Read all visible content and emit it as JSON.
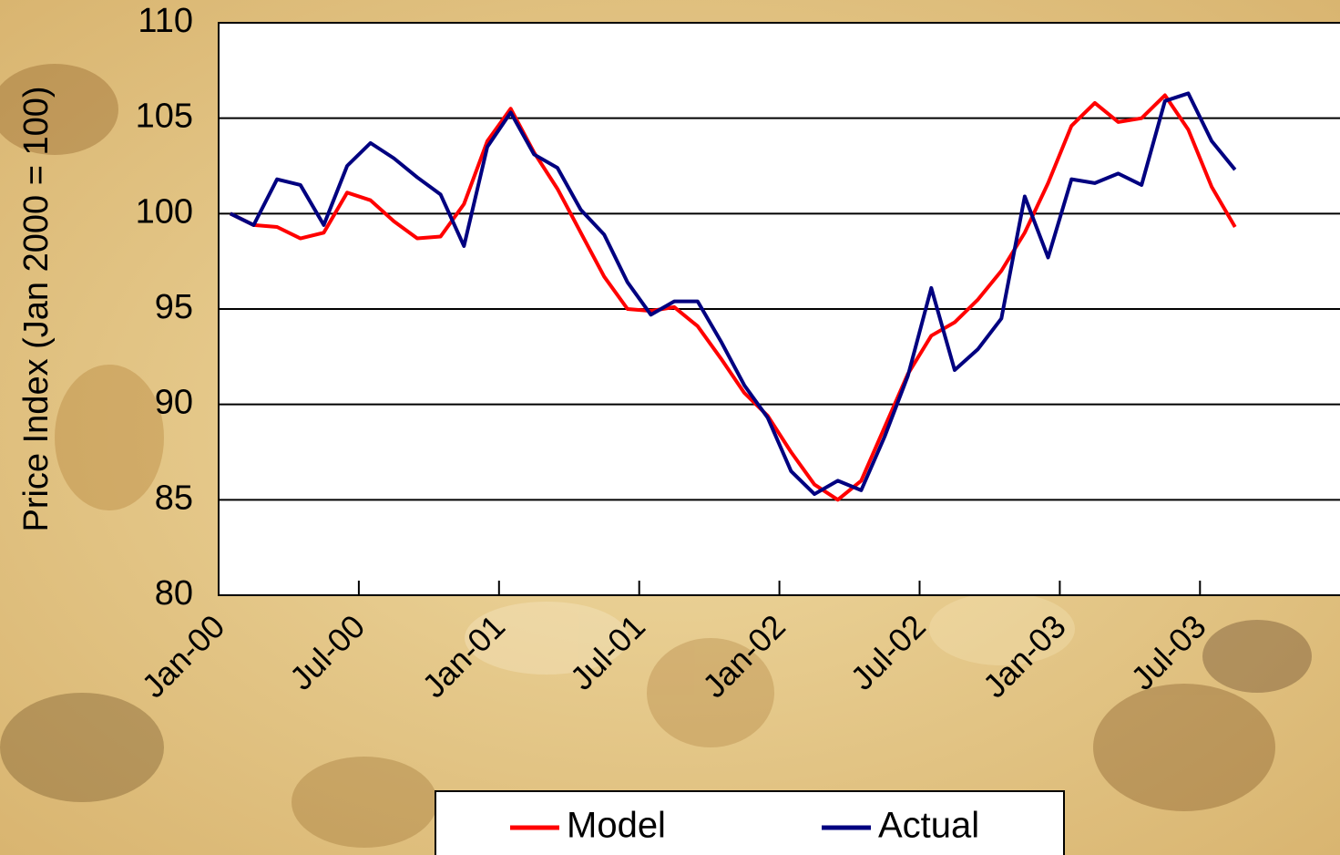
{
  "chart_data": {
    "type": "line",
    "y_label": "Price Index (Jan 2000 = 100)",
    "categories": [
      "Jan-00",
      null,
      null,
      null,
      null,
      null,
      "Jul-00",
      null,
      null,
      null,
      null,
      null,
      "Jan-01",
      null,
      null,
      null,
      null,
      null,
      "Jul-01",
      null,
      null,
      null,
      null,
      null,
      "Jan-02",
      null,
      null,
      null,
      null,
      null,
      "Jul-02",
      null,
      null,
      null,
      null,
      null,
      "Jan-03",
      null,
      null,
      null,
      null,
      null,
      "Jul-03",
      null,
      null,
      null,
      null,
      null
    ],
    "series": [
      {
        "name": "Model",
        "color": "#ff0000",
        "values": [
          100.0,
          99.4,
          99.3,
          98.7,
          99.0,
          101.1,
          100.7,
          99.6,
          98.7,
          98.8,
          100.5,
          103.8,
          105.5,
          103.2,
          101.3,
          99.0,
          96.7,
          95.0,
          94.9,
          95.1,
          94.1,
          92.4,
          90.6,
          89.4,
          87.5,
          85.8,
          85.0,
          86.0,
          88.8,
          91.6,
          93.6,
          94.3,
          95.5,
          97.0,
          99.0,
          101.6,
          104.6,
          105.8,
          104.8,
          105.0,
          106.2,
          104.4,
          101.4,
          99.3,
          null,
          null,
          null,
          null
        ]
      },
      {
        "name": "Actual",
        "color": "#000080",
        "values": [
          100.0,
          99.4,
          101.8,
          101.5,
          99.4,
          102.5,
          103.7,
          102.9,
          101.9,
          101.0,
          98.3,
          103.5,
          105.3,
          103.1,
          102.4,
          100.2,
          98.9,
          96.4,
          94.7,
          95.4,
          95.4,
          93.3,
          91.0,
          89.3,
          86.5,
          85.3,
          86.0,
          85.5,
          88.3,
          91.5,
          96.1,
          91.8,
          92.9,
          94.5,
          100.9,
          97.7,
          101.8,
          101.6,
          102.1,
          101.5,
          105.9,
          106.3,
          103.8,
          102.3,
          null,
          null,
          null,
          null
        ]
      }
    ],
    "ylim": [
      80,
      110
    ],
    "yticks": [
      80,
      85,
      90,
      95,
      100,
      105,
      110
    ],
    "grid": true
  }
}
